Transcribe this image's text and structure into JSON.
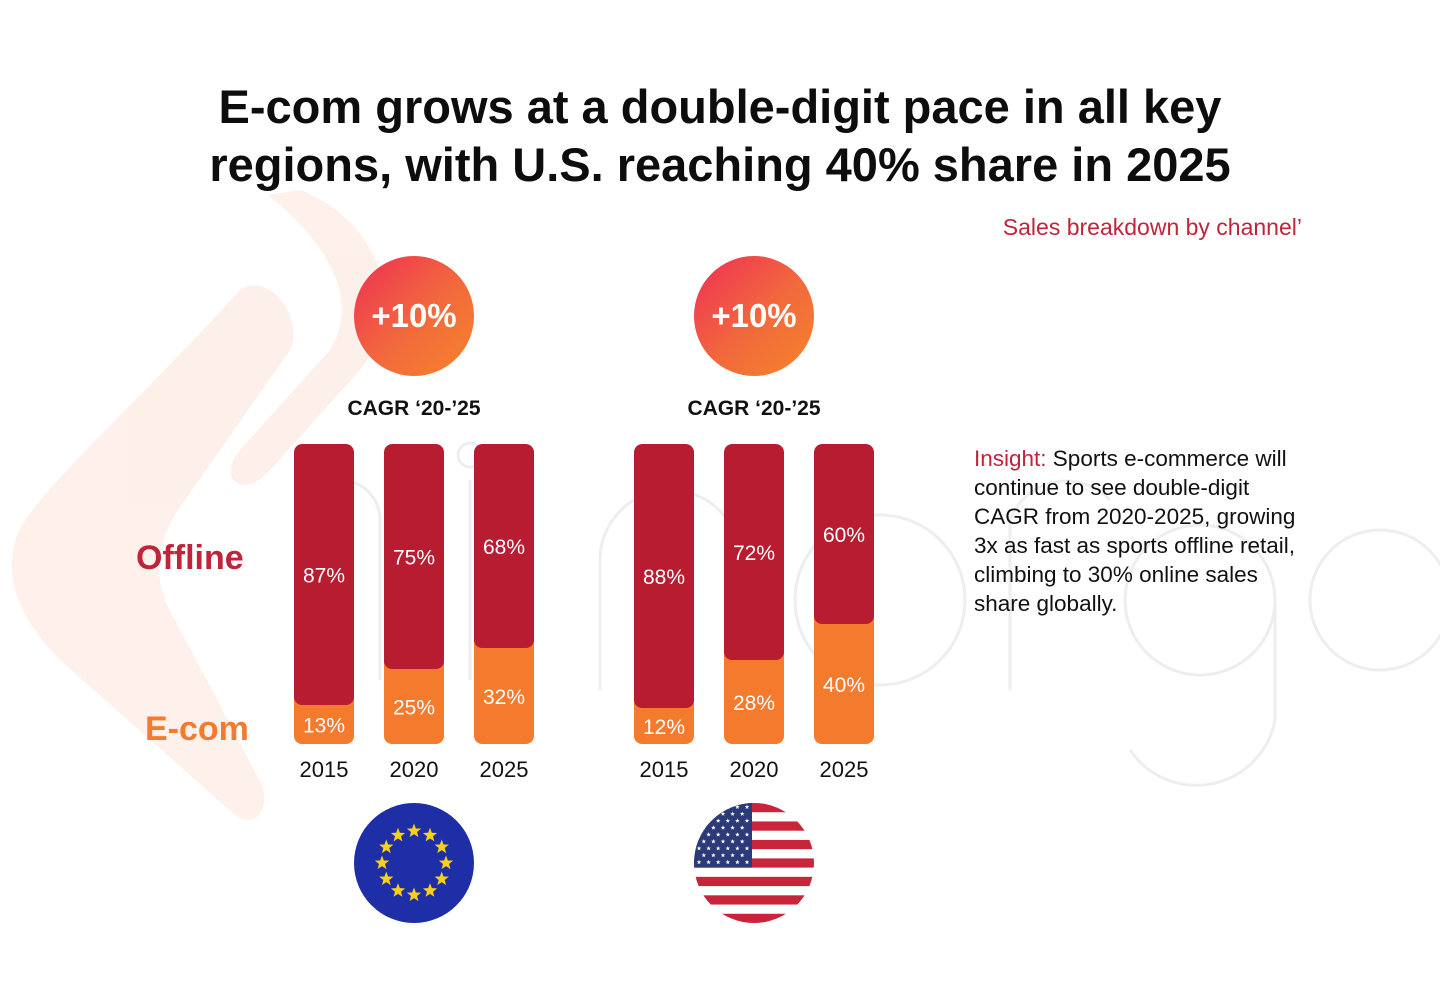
{
  "title_lines": [
    "E-com grows at a double-digit pace in all key",
    "regions, with U.S. reaching 40% share in 2025"
  ],
  "subtitle": "Sales breakdown by channel’",
  "legend": {
    "offline": "Offline",
    "ecom": "E-com"
  },
  "insight": {
    "label": "Insight:",
    "text": " Sports e-commerce will continue to see double-digit CAGR from 2020-2025, growing 3x as fast as sports offline retail, climbing to 30% online sales share globally."
  },
  "colors": {
    "offline": "#b81c31",
    "ecom": "#f47b2e",
    "accent_text": "#c0243a"
  },
  "chart_data": [
    {
      "type": "bar",
      "stacked": true,
      "region": "EU",
      "flag_icon": "eu-flag-icon",
      "badge": "+10%",
      "cagr_label": "CAGR ‘20-’25",
      "categories": [
        "2015",
        "2020",
        "2025"
      ],
      "series": [
        {
          "name": "E-com",
          "values": [
            13,
            25,
            32
          ]
        },
        {
          "name": "Offline",
          "values": [
            87,
            75,
            68
          ]
        }
      ],
      "ylim": [
        0,
        100
      ]
    },
    {
      "type": "bar",
      "stacked": true,
      "region": "US",
      "flag_icon": "us-flag-icon",
      "badge": "+10%",
      "cagr_label": "CAGR ‘20-’25",
      "categories": [
        "2015",
        "2020",
        "2025"
      ],
      "series": [
        {
          "name": "E-com",
          "values": [
            12,
            28,
            40
          ]
        },
        {
          "name": "Offline",
          "values": [
            88,
            72,
            60
          ]
        }
      ],
      "ylim": [
        0,
        100
      ]
    }
  ]
}
